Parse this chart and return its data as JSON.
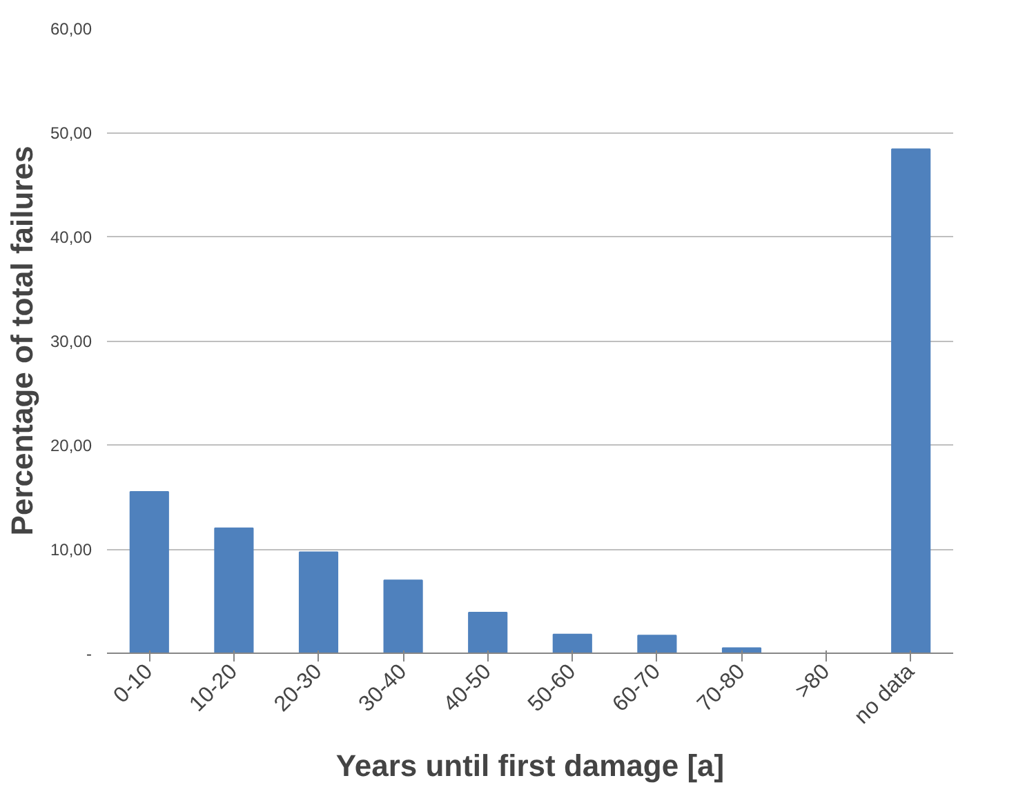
{
  "chart_data": {
    "type": "bar",
    "xlabel": "Years until first damage [a]",
    "ylabel": "Percentage of total failures",
    "categories": [
      "0-10",
      "10-20",
      "20-30",
      "30-40",
      "40-50",
      "50-60",
      "60-70",
      "70-80",
      ">80",
      "no data"
    ],
    "values": [
      15.5,
      12.0,
      9.7,
      7.0,
      3.9,
      1.8,
      1.7,
      0.5,
      0,
      48.4
    ],
    "color": "#4f81bd",
    "ylim": [
      0,
      60
    ],
    "yticks": [
      {
        "value": 0,
        "label": "-"
      },
      {
        "value": 10,
        "label": "10,00"
      },
      {
        "value": 20,
        "label": "20,00"
      },
      {
        "value": 30,
        "label": "30,00"
      },
      {
        "value": 40,
        "label": "40,00"
      },
      {
        "value": 50,
        "label": "50,00"
      },
      {
        "value": 60,
        "label": "60,00"
      }
    ],
    "grid": "y"
  }
}
